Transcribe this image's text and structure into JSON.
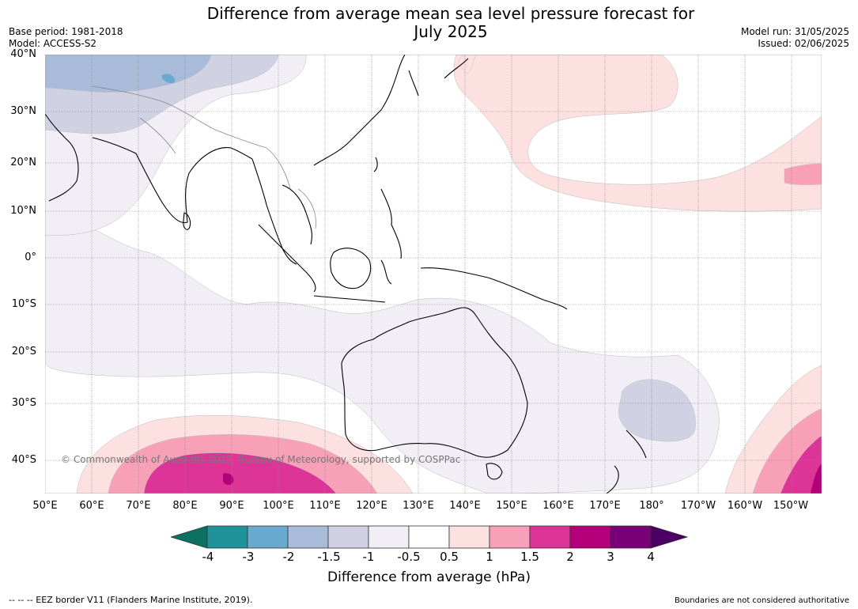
{
  "header": {
    "title_line1": "Difference from average mean sea level pressure forecast for",
    "title_line2": "July 2025",
    "base_period": "Base period: 1981-2018",
    "model": "Model: ACCESS-S2",
    "model_run": "Model run: 31/05/2025",
    "issued": "Issued: 02/06/2025"
  },
  "map": {
    "lat_labels": [
      "40°N",
      "30°N",
      "20°N",
      "10°N",
      "0°",
      "10°S",
      "20°S",
      "30°S",
      "40°S"
    ],
    "lon_labels": [
      "50°E",
      "60°E",
      "70°E",
      "80°E",
      "90°E",
      "100°E",
      "110°E",
      "120°E",
      "130°E",
      "140°E",
      "150°E",
      "160°E",
      "170°E",
      "180°",
      "170°W",
      "160°W",
      "150°W"
    ],
    "copyright": "© Commonwealth of Australia 2025, Bureau of Meteorology, supported by COSPPac"
  },
  "colorbar": {
    "label": "Difference from average (hPa)",
    "ticks": [
      "-4",
      "-3",
      "-2",
      "-1.5",
      "-1",
      "-0.5",
      "0.5",
      "1",
      "1.5",
      "2",
      "3",
      "4"
    ],
    "colors": [
      "#0e7062",
      "#20939a",
      "#6aa9cf",
      "#a8bcd9",
      "#d0d2e4",
      "#f2eef6",
      "#ffffff",
      "#fde0e0",
      "#f8a0b8",
      "#dc3597",
      "#b3007a",
      "#7a0077",
      "#4c0066"
    ]
  },
  "footer": {
    "eez_note": "--  --  -- EEZ border V11 (Flanders Marine Institute, 2019).",
    "boundaries_note": "Boundaries are not considered authoritative"
  }
}
